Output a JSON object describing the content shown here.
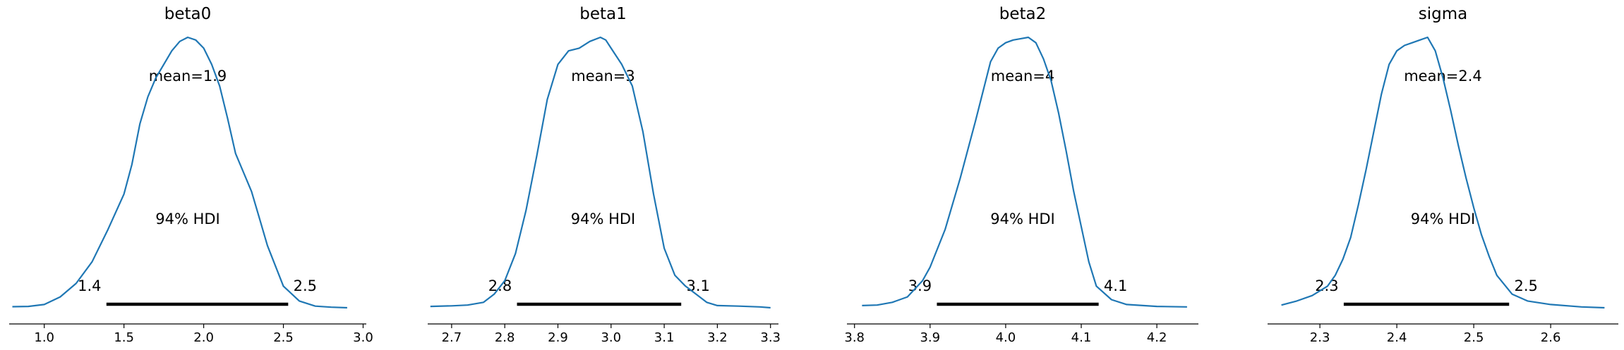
{
  "chart_data": [
    {
      "type": "line",
      "title": "beta0",
      "mean_label": "mean=1.9",
      "hdi_label": "94% HDI",
      "hdi_low_label": "1.4",
      "hdi_high_label": "2.5",
      "hdi": [
        1.39,
        2.53
      ],
      "xlim": [
        0.78,
        3.02
      ],
      "xticks": [
        1.0,
        1.5,
        2.0,
        2.5,
        3.0
      ],
      "xtick_labels": [
        "1.0",
        "1.5",
        "2.0",
        "2.5",
        "3.0"
      ],
      "color": "#1f77b4",
      "x": [
        0.8,
        0.9,
        1.0,
        1.1,
        1.2,
        1.3,
        1.4,
        1.5,
        1.55,
        1.6,
        1.65,
        1.7,
        1.75,
        1.8,
        1.85,
        1.9,
        1.95,
        2.0,
        2.05,
        2.1,
        2.15,
        2.2,
        2.25,
        2.3,
        2.35,
        2.4,
        2.5,
        2.6,
        2.7,
        2.8,
        2.9
      ],
      "y": [
        0.004,
        0.005,
        0.012,
        0.04,
        0.09,
        0.17,
        0.29,
        0.42,
        0.53,
        0.68,
        0.78,
        0.85,
        0.9,
        0.95,
        0.985,
        1.0,
        0.99,
        0.96,
        0.9,
        0.82,
        0.7,
        0.57,
        0.5,
        0.43,
        0.33,
        0.23,
        0.08,
        0.025,
        0.006,
        0.002,
        0.0
      ]
    },
    {
      "type": "line",
      "title": "beta1",
      "mean_label": "mean=3",
      "hdi_label": "94% HDI",
      "hdi_low_label": "2.8",
      "hdi_high_label": "3.1",
      "hdi": [
        2.823,
        3.132
      ],
      "xlim": [
        2.655,
        3.315
      ],
      "xticks": [
        2.7,
        2.8,
        2.9,
        3.0,
        3.1,
        3.2,
        3.3
      ],
      "xtick_labels": [
        "2.7",
        "2.8",
        "2.9",
        "3.0",
        "3.1",
        "3.2",
        "3.3"
      ],
      "color": "#1f77b4",
      "x": [
        2.66,
        2.7,
        2.73,
        2.76,
        2.78,
        2.8,
        2.82,
        2.84,
        2.86,
        2.88,
        2.9,
        2.92,
        2.94,
        2.96,
        2.98,
        2.99,
        3.0,
        3.02,
        3.04,
        3.06,
        3.08,
        3.1,
        3.12,
        3.14,
        3.16,
        3.18,
        3.2,
        3.24,
        3.28,
        3.3
      ],
      "y": [
        0.005,
        0.007,
        0.01,
        0.02,
        0.05,
        0.1,
        0.2,
        0.36,
        0.56,
        0.77,
        0.9,
        0.95,
        0.96,
        0.985,
        1.0,
        0.99,
        0.96,
        0.9,
        0.82,
        0.65,
        0.42,
        0.22,
        0.12,
        0.08,
        0.05,
        0.02,
        0.008,
        0.006,
        0.003,
        0.0
      ]
    },
    {
      "type": "line",
      "title": "beta2",
      "mean_label": "mean=4",
      "hdi_label": "94% HDI",
      "hdi_low_label": "3.9",
      "hdi_high_label": "4.1",
      "hdi": [
        3.909,
        4.123
      ],
      "xlim": [
        3.79,
        4.255
      ],
      "xticks": [
        3.8,
        3.9,
        4.0,
        4.1,
        4.2
      ],
      "xtick_labels": [
        "3.8",
        "3.9",
        "4.0",
        "4.1",
        "4.2"
      ],
      "color": "#1f77b4",
      "x": [
        3.81,
        3.83,
        3.85,
        3.87,
        3.88,
        3.89,
        3.9,
        3.92,
        3.94,
        3.96,
        3.97,
        3.98,
        3.99,
        4.0,
        4.01,
        4.02,
        4.03,
        4.04,
        4.05,
        4.06,
        4.07,
        4.08,
        4.09,
        4.1,
        4.11,
        4.12,
        4.14,
        4.16,
        4.2,
        4.24
      ],
      "y": [
        0.008,
        0.01,
        0.02,
        0.04,
        0.07,
        0.1,
        0.15,
        0.29,
        0.48,
        0.69,
        0.8,
        0.91,
        0.96,
        0.98,
        0.99,
        0.995,
        1.0,
        0.98,
        0.92,
        0.84,
        0.72,
        0.58,
        0.43,
        0.3,
        0.17,
        0.08,
        0.03,
        0.012,
        0.005,
        0.003
      ]
    },
    {
      "type": "line",
      "title": "sigma",
      "mean_label": "mean=2.4",
      "hdi_label": "94% HDI",
      "hdi_low_label": "2.3",
      "hdi_high_label": "2.5",
      "hdi": [
        2.331,
        2.546
      ],
      "xlim": [
        2.232,
        2.688
      ],
      "xticks": [
        2.3,
        2.4,
        2.5,
        2.6
      ],
      "xtick_labels": [
        "2.3",
        "2.4",
        "2.5",
        "2.6"
      ],
      "color": "#1f77b4",
      "x": [
        2.25,
        2.27,
        2.29,
        2.31,
        2.32,
        2.33,
        2.34,
        2.35,
        2.36,
        2.37,
        2.38,
        2.39,
        2.4,
        2.41,
        2.42,
        2.43,
        2.44,
        2.45,
        2.46,
        2.47,
        2.48,
        2.49,
        2.5,
        2.51,
        2.52,
        2.53,
        2.55,
        2.57,
        2.6,
        2.64,
        2.67
      ],
      "y": [
        0.01,
        0.025,
        0.045,
        0.08,
        0.12,
        0.18,
        0.26,
        0.38,
        0.51,
        0.65,
        0.79,
        0.9,
        0.95,
        0.97,
        0.98,
        0.99,
        1.0,
        0.95,
        0.85,
        0.73,
        0.6,
        0.48,
        0.37,
        0.27,
        0.19,
        0.12,
        0.05,
        0.025,
        0.012,
        0.003,
        0.0
      ]
    }
  ]
}
